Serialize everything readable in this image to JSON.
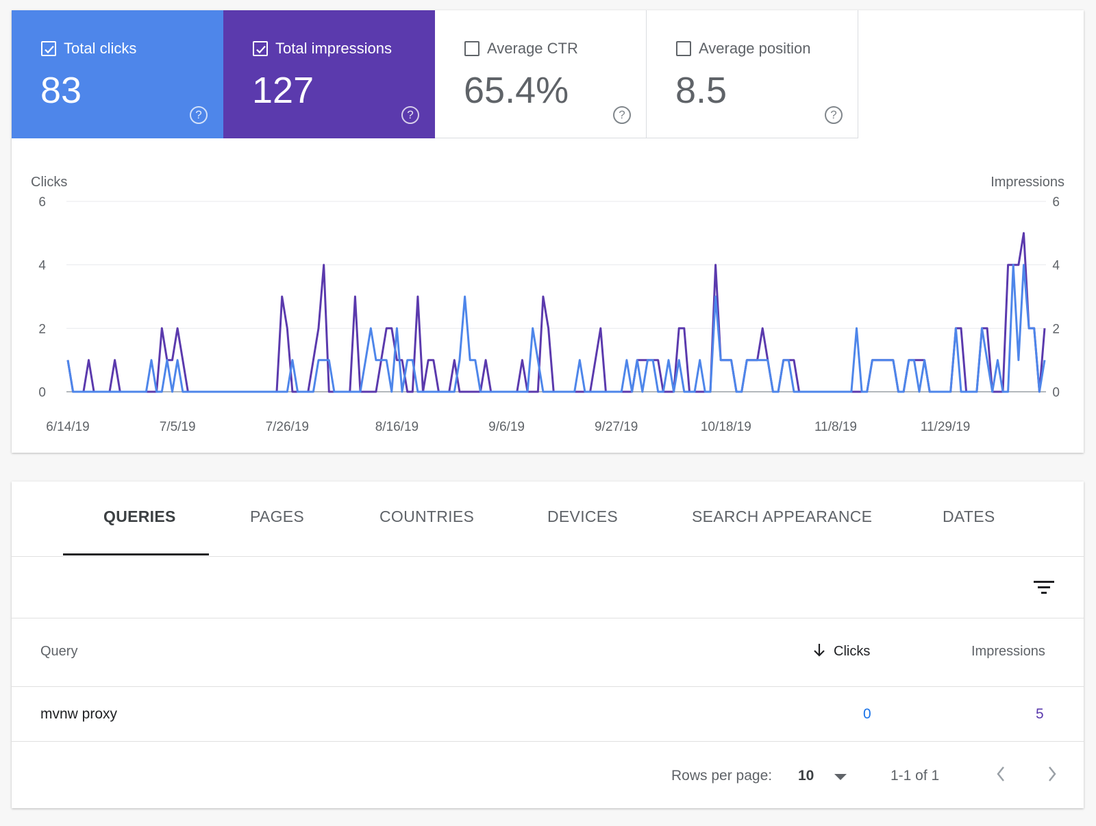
{
  "metrics": {
    "clicks": {
      "label": "Total clicks",
      "value": "83",
      "checked": true
    },
    "impressions": {
      "label": "Total impressions",
      "value": "127",
      "checked": true
    },
    "ctr": {
      "label": "Average CTR",
      "value": "65.4%",
      "checked": false
    },
    "position": {
      "label": "Average position",
      "value": "8.5",
      "checked": false
    },
    "help_glyph": "?"
  },
  "colors": {
    "clicks": "#4e86ea",
    "impressions": "#5b3aad"
  },
  "chart_data": {
    "type": "line",
    "ylabel_left": "Clicks",
    "ylabel_right": "Impressions",
    "ylim": [
      0,
      6
    ],
    "yticks": [
      0,
      2,
      4,
      6
    ],
    "xticks": [
      "6/14/19",
      "7/5/19",
      "7/26/19",
      "8/16/19",
      "9/6/19",
      "9/27/19",
      "10/18/19",
      "11/8/19",
      "11/29/19"
    ],
    "grid": true,
    "series": [
      {
        "name": "Impressions",
        "color": "#5b3aad",
        "values": [
          1,
          0,
          0,
          0,
          1,
          0,
          0,
          0,
          0,
          1,
          0,
          0,
          0,
          0,
          0,
          0,
          0,
          0,
          2,
          1,
          1,
          2,
          1,
          0,
          0,
          0,
          0,
          0,
          0,
          0,
          0,
          0,
          0,
          0,
          0,
          0,
          0,
          0,
          0,
          0,
          0,
          3,
          2,
          0,
          0,
          0,
          0,
          1,
          2,
          4,
          0,
          0,
          0,
          0,
          0,
          3,
          0,
          0,
          0,
          0,
          1,
          2,
          2,
          1,
          1,
          0,
          0,
          3,
          0,
          1,
          1,
          0,
          0,
          0,
          1,
          0,
          0,
          0,
          0,
          0,
          1,
          0,
          0,
          0,
          0,
          0,
          0,
          1,
          0,
          0,
          0,
          3,
          2,
          0,
          0,
          0,
          0,
          0,
          0,
          0,
          0,
          1,
          2,
          0,
          0,
          0,
          0,
          0,
          0,
          1,
          1,
          1,
          1,
          1,
          0,
          0,
          0,
          2,
          2,
          0,
          0,
          0,
          0,
          0,
          4,
          1,
          1,
          1,
          0,
          0,
          1,
          1,
          1,
          2,
          1,
          0,
          0,
          1,
          1,
          1,
          0,
          0,
          0,
          0,
          0,
          0,
          0,
          0,
          0,
          0,
          0,
          0,
          0,
          0,
          1,
          1,
          1,
          1,
          1,
          0,
          0,
          1,
          1,
          1,
          1,
          0,
          0,
          0,
          0,
          0,
          2,
          2,
          0,
          0,
          0,
          2,
          2,
          0,
          0,
          0,
          4,
          4,
          4,
          5,
          2,
          2,
          0,
          2
        ]
      },
      {
        "name": "Clicks",
        "color": "#4e86ea",
        "values": [
          1,
          0,
          0,
          0,
          0,
          0,
          0,
          0,
          0,
          0,
          0,
          0,
          0,
          0,
          0,
          0,
          1,
          0,
          0,
          1,
          0,
          1,
          0,
          0,
          0,
          0,
          0,
          0,
          0,
          0,
          0,
          0,
          0,
          0,
          0,
          0,
          0,
          0,
          0,
          0,
          0,
          0,
          0,
          1,
          0,
          0,
          0,
          0,
          1,
          1,
          1,
          0,
          0,
          0,
          0,
          0,
          0,
          1,
          2,
          1,
          1,
          1,
          0,
          2,
          0,
          1,
          1,
          0,
          0,
          0,
          0,
          0,
          0,
          0,
          0,
          1,
          3,
          1,
          1,
          0,
          0,
          0,
          0,
          0,
          0,
          0,
          0,
          0,
          0,
          2,
          1,
          0,
          0,
          0,
          0,
          0,
          0,
          0,
          1,
          0,
          0,
          0,
          0,
          0,
          0,
          0,
          0,
          1,
          0,
          1,
          0,
          1,
          1,
          0,
          0,
          1,
          0,
          1,
          0,
          0,
          0,
          1,
          0,
          0,
          3,
          1,
          1,
          1,
          0,
          0,
          1,
          1,
          1,
          1,
          1,
          0,
          0,
          1,
          1,
          0,
          0,
          0,
          0,
          0,
          0,
          0,
          0,
          0,
          0,
          0,
          0,
          2,
          0,
          0,
          1,
          1,
          1,
          1,
          1,
          0,
          0,
          1,
          1,
          0,
          1,
          0,
          0,
          0,
          0,
          0,
          2,
          0,
          0,
          0,
          0,
          2,
          1,
          0,
          1,
          0,
          0,
          4,
          1,
          4,
          2,
          2,
          0,
          1
        ]
      }
    ]
  },
  "tabs": [
    "QUERIES",
    "PAGES",
    "COUNTRIES",
    "DEVICES",
    "SEARCH APPEARANCE",
    "DATES"
  ],
  "table": {
    "headers": {
      "query": "Query",
      "clicks": "Clicks",
      "impressions": "Impressions"
    },
    "rows": [
      {
        "query": "mvnw proxy",
        "clicks": "0",
        "impressions": "5"
      }
    ]
  },
  "pagination": {
    "rows_per_page_label": "Rows per page:",
    "rows_per_page_value": "10",
    "range": "1-1 of 1"
  }
}
